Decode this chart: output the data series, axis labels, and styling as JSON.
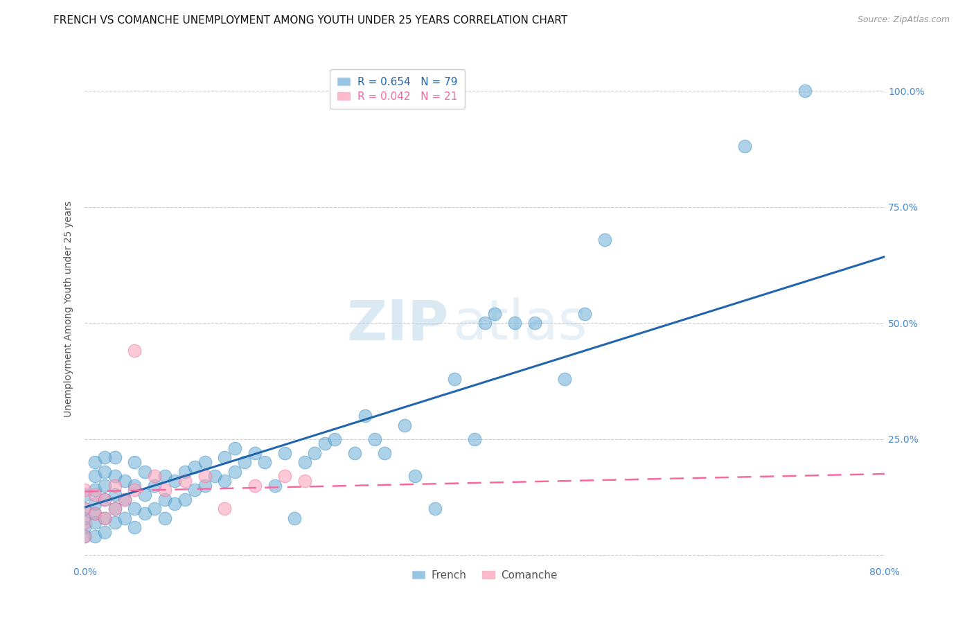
{
  "title": "FRENCH VS COMANCHE UNEMPLOYMENT AMONG YOUTH UNDER 25 YEARS CORRELATION CHART",
  "source": "Source: ZipAtlas.com",
  "ylabel": "Unemployment Among Youth under 25 years",
  "xlim": [
    0.0,
    0.8
  ],
  "ylim": [
    -0.02,
    1.08
  ],
  "x_ticks": [
    0.0,
    0.1,
    0.2,
    0.3,
    0.4,
    0.5,
    0.6,
    0.7,
    0.8
  ],
  "y_ticks": [
    0.0,
    0.25,
    0.5,
    0.75,
    1.0
  ],
  "french_color": "#6baed6",
  "french_edge_color": "#4292c6",
  "comanche_color": "#fa9fb5",
  "comanche_edge_color": "#f768a1",
  "french_line_color": "#2166ac",
  "comanche_line_color": "#f768a1",
  "R_french": 0.654,
  "N_french": 79,
  "R_comanche": 0.042,
  "N_comanche": 21,
  "background_color": "#ffffff",
  "grid_color": "#cccccc",
  "french_scatter_x": [
    0.0,
    0.0,
    0.0,
    0.0,
    0.0,
    0.01,
    0.01,
    0.01,
    0.01,
    0.01,
    0.01,
    0.01,
    0.02,
    0.02,
    0.02,
    0.02,
    0.02,
    0.02,
    0.03,
    0.03,
    0.03,
    0.03,
    0.03,
    0.04,
    0.04,
    0.04,
    0.05,
    0.05,
    0.05,
    0.05,
    0.06,
    0.06,
    0.06,
    0.07,
    0.07,
    0.08,
    0.08,
    0.08,
    0.09,
    0.09,
    0.1,
    0.1,
    0.11,
    0.11,
    0.12,
    0.12,
    0.13,
    0.14,
    0.14,
    0.15,
    0.15,
    0.16,
    0.17,
    0.18,
    0.19,
    0.2,
    0.21,
    0.22,
    0.23,
    0.24,
    0.25,
    0.27,
    0.28,
    0.29,
    0.3,
    0.32,
    0.33,
    0.35,
    0.37,
    0.39,
    0.4,
    0.41,
    0.43,
    0.45,
    0.48,
    0.5,
    0.52,
    0.66,
    0.72
  ],
  "french_scatter_y": [
    0.04,
    0.06,
    0.08,
    0.1,
    0.13,
    0.04,
    0.07,
    0.09,
    0.11,
    0.14,
    0.17,
    0.2,
    0.05,
    0.08,
    0.12,
    0.15,
    0.18,
    0.21,
    0.07,
    0.1,
    0.13,
    0.17,
    0.21,
    0.08,
    0.12,
    0.16,
    0.06,
    0.1,
    0.15,
    0.2,
    0.09,
    0.13,
    0.18,
    0.1,
    0.15,
    0.08,
    0.12,
    0.17,
    0.11,
    0.16,
    0.12,
    0.18,
    0.14,
    0.19,
    0.15,
    0.2,
    0.17,
    0.16,
    0.21,
    0.18,
    0.23,
    0.2,
    0.22,
    0.2,
    0.15,
    0.22,
    0.08,
    0.2,
    0.22,
    0.24,
    0.25,
    0.22,
    0.3,
    0.25,
    0.22,
    0.28,
    0.17,
    0.1,
    0.38,
    0.25,
    0.5,
    0.52,
    0.5,
    0.5,
    0.38,
    0.52,
    0.68,
    0.88,
    1.0
  ],
  "comanche_scatter_x": [
    0.0,
    0.0,
    0.0,
    0.0,
    0.01,
    0.01,
    0.02,
    0.02,
    0.03,
    0.03,
    0.04,
    0.05,
    0.05,
    0.07,
    0.08,
    0.1,
    0.12,
    0.14,
    0.17,
    0.2,
    0.22
  ],
  "comanche_scatter_y": [
    0.04,
    0.07,
    0.1,
    0.14,
    0.09,
    0.13,
    0.08,
    0.12,
    0.1,
    0.15,
    0.12,
    0.44,
    0.14,
    0.17,
    0.14,
    0.16,
    0.17,
    0.1,
    0.15,
    0.17,
    0.16
  ],
  "watermark_line1": "ZIP",
  "watermark_line2": "atlas",
  "title_fontsize": 11,
  "axis_label_fontsize": 10,
  "tick_fontsize": 10,
  "legend_fontsize": 11
}
